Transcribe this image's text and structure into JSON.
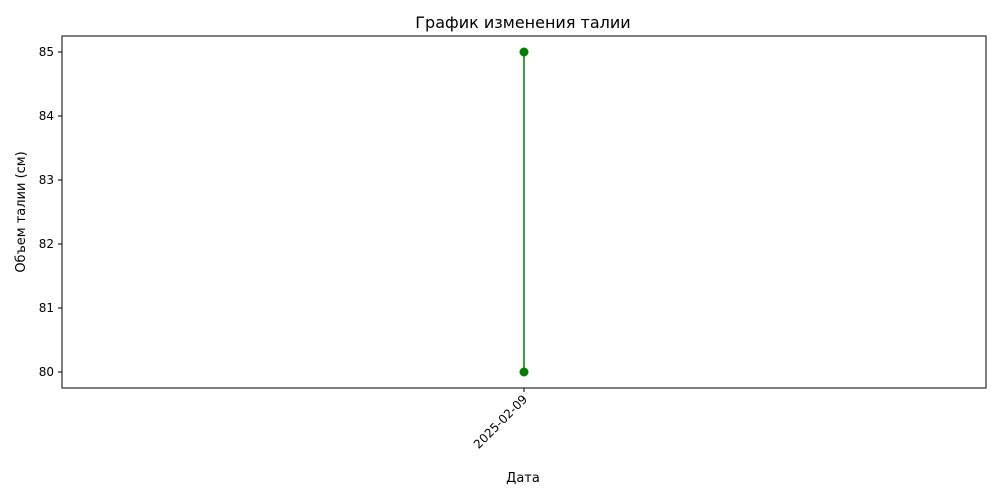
{
  "chart_data": {
    "type": "line",
    "title": "График изменения талии",
    "xlabel": "Дата",
    "ylabel": "Объем талии (см)",
    "x_ticks": [
      "2025-02-09"
    ],
    "y_ticks": [
      80,
      81,
      82,
      83,
      84,
      85
    ],
    "ylim": [
      79.75,
      85.25
    ],
    "grid": false,
    "legend": "none",
    "series": [
      {
        "color": "#008000",
        "marker": "circle",
        "points": [
          {
            "x": "2025-02-09",
            "y": 85
          },
          {
            "x": "2025-02-09",
            "y": 80
          }
        ]
      }
    ]
  }
}
